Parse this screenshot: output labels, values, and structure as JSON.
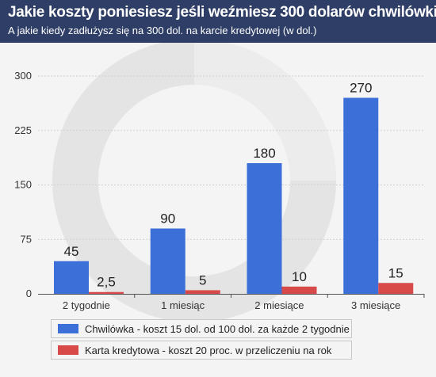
{
  "header": {
    "title": "Jakie koszty poniesiesz jeśli weźmiesz 300 dolarów chwilówki",
    "subtitle": "A jakie kiedy zadłużysz się na 300 dol. na karcie kredytowej (w dol.)"
  },
  "colors": {
    "header_bg": "#2e3e66",
    "series_blue": "#3c6fd8",
    "series_red": "#d84a4a",
    "watermark": "#e2e2e2"
  },
  "chart_data": {
    "type": "bar",
    "title": "Jakie koszty poniesiesz jeśli weźmiesz 300 dolarów chwilówki",
    "subtitle": "A jakie kiedy zadłużysz się na 300 dol. na karcie kredytowej (w dol.)",
    "categories": [
      "2 tygodnie",
      "1 miesiąc",
      "2 miesiące",
      "3 miesiące"
    ],
    "series": [
      {
        "name": "Chwilówka - koszt 15 dol. od 100 dol. za każde 2 tygodnie",
        "values": [
          45,
          90,
          180,
          270
        ],
        "labels": [
          "45",
          "90",
          "180",
          "270"
        ],
        "color": "#3c6fd8"
      },
      {
        "name": "Karta kredytowa - koszt 20 proc. w przeliczeniu na rok",
        "values": [
          2.5,
          5,
          10,
          15
        ],
        "labels": [
          "2,5",
          "5",
          "10",
          "15"
        ],
        "color": "#d84a4a"
      }
    ],
    "yticks": [
      "0",
      "75",
      "150",
      "225",
      "300"
    ],
    "ylim": [
      0,
      300
    ],
    "grid": true,
    "legend": "bottom"
  }
}
